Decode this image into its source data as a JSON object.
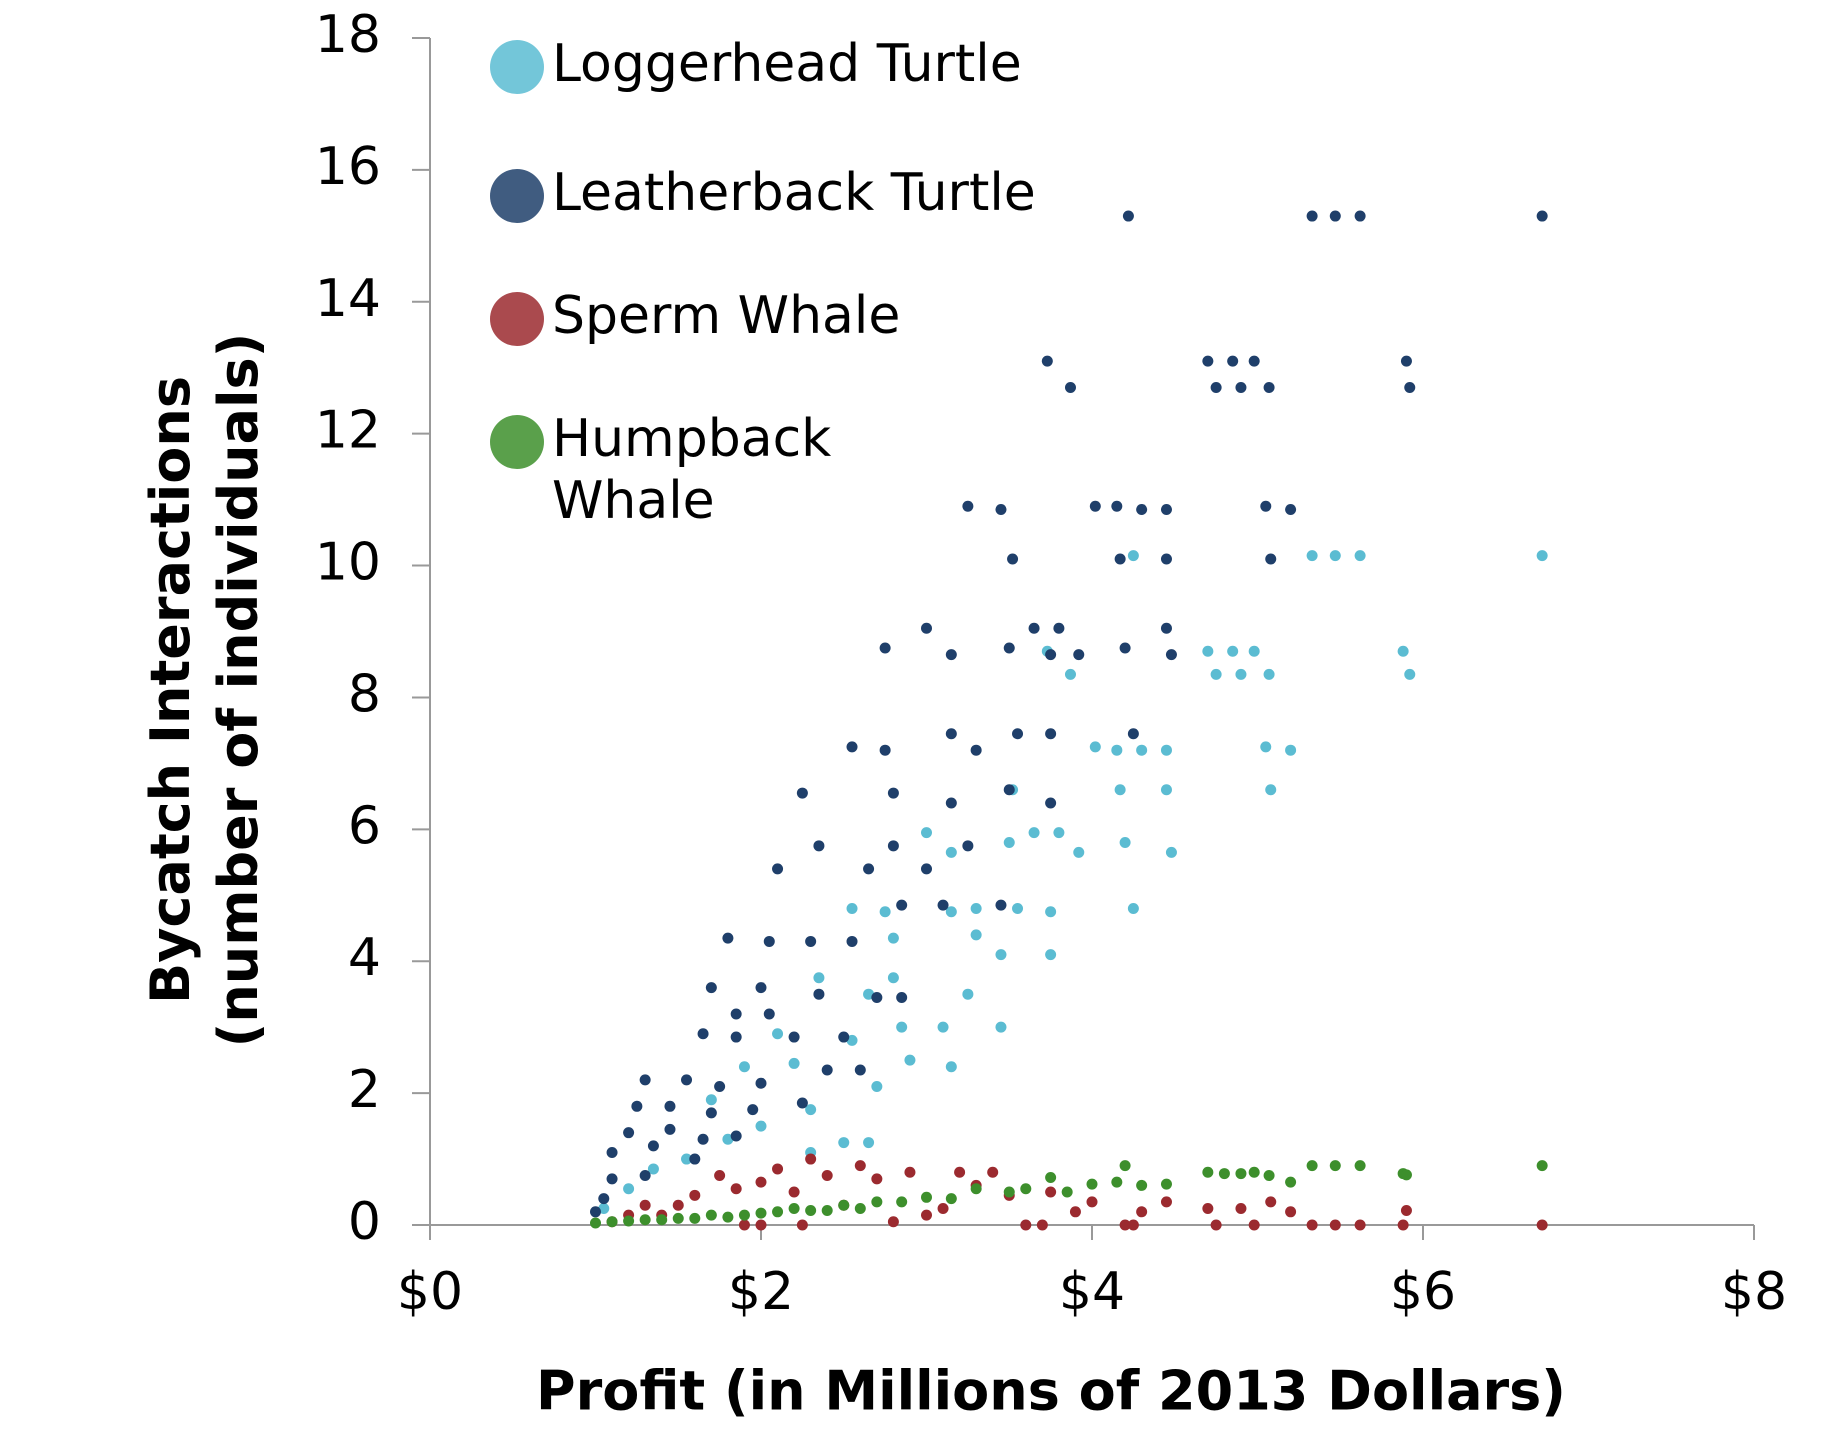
{
  "chart_data": {
    "type": "scatter",
    "xlabel": "Profit (in Millions of 2013 Dollars)",
    "ylabel": "Bycatch Interactions (number of individuals)",
    "xlim": [
      0,
      8
    ],
    "xticks": [
      {
        "value": 0,
        "label": "$0"
      },
      {
        "value": 2,
        "label": "$2"
      },
      {
        "value": 4,
        "label": "$4"
      },
      {
        "value": 6,
        "label": "$6"
      },
      {
        "value": 8,
        "label": "$8"
      }
    ],
    "ylim": [
      0,
      18
    ],
    "yticks": [
      0,
      2,
      4,
      6,
      8,
      10,
      12,
      14,
      16,
      18
    ],
    "legend": "upper left",
    "series": [
      {
        "name": "Loggerhead Turtle",
        "color": "#5bbcd2",
        "x": [
          4.25,
          5.33,
          5.47,
          5.62,
          6.72,
          4.7,
          4.85,
          4.98,
          4.75,
          4.9,
          5.07,
          5.88,
          5.92,
          3.73,
          3.87,
          4.02,
          4.15,
          4.3,
          4.45,
          5.05,
          5.2,
          3.52,
          4.17,
          4.45,
          5.08,
          3.0,
          3.15,
          3.5,
          3.65,
          3.8,
          3.92,
          4.2,
          4.48,
          2.55,
          2.75,
          3.15,
          3.3,
          3.55,
          3.75,
          4.25,
          2.8,
          3.3,
          3.45,
          3.75,
          2.35,
          2.65,
          2.8,
          3.25,
          2.85,
          3.1,
          3.45,
          2.1,
          2.55,
          2.9,
          3.15,
          2.7,
          2.2,
          1.9,
          2.3,
          1.7,
          2.5,
          2.65,
          2.0,
          2.3,
          1.55,
          1.35,
          1.8,
          1.2,
          1.05
        ],
        "values": [
          10.15,
          10.15,
          10.15,
          10.15,
          10.15,
          8.7,
          8.7,
          8.7,
          8.35,
          8.35,
          8.35,
          8.7,
          8.35,
          8.7,
          8.35,
          7.25,
          7.2,
          7.2,
          7.2,
          7.25,
          7.2,
          6.6,
          6.6,
          6.6,
          6.6,
          5.95,
          5.65,
          5.8,
          5.95,
          5.95,
          5.65,
          5.8,
          5.65,
          4.8,
          4.75,
          4.75,
          4.8,
          4.8,
          4.75,
          4.8,
          4.35,
          4.4,
          4.1,
          4.1,
          3.75,
          3.5,
          3.75,
          3.5,
          3.0,
          3.0,
          3.0,
          2.9,
          2.8,
          2.5,
          2.4,
          2.1,
          2.45,
          2.4,
          1.75,
          1.9,
          1.25,
          1.25,
          1.5,
          1.1,
          1.0,
          0.85,
          1.3,
          0.55,
          0.25
        ]
      },
      {
        "name": "Leatherback Turtle",
        "color": "#1f3f6a",
        "x": [
          4.22,
          5.33,
          5.47,
          5.62,
          6.72,
          3.73,
          3.87,
          4.7,
          4.85,
          4.98,
          4.75,
          4.9,
          5.07,
          5.9,
          5.92,
          3.25,
          3.45,
          4.02,
          4.15,
          4.3,
          4.45,
          5.05,
          5.2,
          3.52,
          4.17,
          4.45,
          5.08,
          2.75,
          3.0,
          3.15,
          3.5,
          3.65,
          3.8,
          3.75,
          3.92,
          4.2,
          4.45,
          4.48,
          2.55,
          2.75,
          3.15,
          3.3,
          3.55,
          3.75,
          4.25,
          2.25,
          2.8,
          3.15,
          3.5,
          3.75,
          2.35,
          2.65,
          2.8,
          2.1,
          3.0,
          3.25,
          2.85,
          3.1,
          3.45,
          1.8,
          2.05,
          2.3,
          2.55,
          1.7,
          2.0,
          2.35,
          2.7,
          2.85,
          1.85,
          2.05,
          1.65,
          1.85,
          2.2,
          2.5,
          1.3,
          1.55,
          1.75,
          2.0,
          2.4,
          2.6,
          1.25,
          1.45,
          1.7,
          1.95,
          2.25,
          1.2,
          1.45,
          1.65,
          1.85,
          1.1,
          1.35,
          1.6,
          1.1,
          1.3,
          1.0,
          1.05
        ],
        "values": [
          15.3,
          15.3,
          15.3,
          15.3,
          15.3,
          13.1,
          12.7,
          13.1,
          13.1,
          13.1,
          12.7,
          12.7,
          12.7,
          13.1,
          12.7,
          10.9,
          10.85,
          10.9,
          10.9,
          10.85,
          10.85,
          10.9,
          10.85,
          10.1,
          10.1,
          10.1,
          10.1,
          8.75,
          9.05,
          8.65,
          8.75,
          9.05,
          9.05,
          8.65,
          8.65,
          8.75,
          9.05,
          8.65,
          7.25,
          7.2,
          7.45,
          7.2,
          7.45,
          7.45,
          7.45,
          6.55,
          6.55,
          6.4,
          6.6,
          6.4,
          5.75,
          5.4,
          5.75,
          5.4,
          5.4,
          5.75,
          4.85,
          4.85,
          4.85,
          4.35,
          4.3,
          4.3,
          4.3,
          3.6,
          3.6,
          3.5,
          3.45,
          3.45,
          3.2,
          3.2,
          2.9,
          2.85,
          2.85,
          2.85,
          2.2,
          2.2,
          2.1,
          2.15,
          2.35,
          2.35,
          1.8,
          1.8,
          1.7,
          1.75,
          1.85,
          1.4,
          1.45,
          1.3,
          1.35,
          1.1,
          1.2,
          1.0,
          0.7,
          0.75,
          0.2,
          0.4
        ]
      },
      {
        "name": "Sperm Whale",
        "color": "#9b2a2f",
        "x": [
          6.72,
          5.9,
          5.88,
          5.62,
          5.47,
          5.33,
          5.2,
          5.08,
          4.98,
          4.9,
          4.75,
          4.7,
          4.45,
          4.3,
          4.2,
          4.25,
          4.0,
          3.9,
          3.75,
          3.6,
          3.5,
          3.3,
          3.2,
          3.1,
          3.0,
          2.9,
          2.8,
          2.7,
          2.6,
          2.5,
          2.4,
          2.3,
          2.2,
          2.1,
          2.0,
          1.9,
          1.85,
          1.75,
          1.6,
          1.5,
          1.4,
          1.3,
          1.2,
          1.1,
          3.4,
          3.7,
          2.25,
          2.0
        ],
        "values": [
          0.0,
          0.22,
          0.0,
          0.0,
          0.0,
          0.0,
          0.2,
          0.35,
          0.0,
          0.25,
          0.0,
          0.25,
          0.35,
          0.2,
          0.0,
          0.0,
          0.35,
          0.2,
          0.5,
          0.0,
          0.45,
          0.6,
          0.8,
          0.25,
          0.15,
          0.8,
          0.05,
          0.7,
          0.9,
          0.3,
          0.75,
          1.0,
          0.5,
          0.85,
          0.65,
          0.0,
          0.55,
          0.75,
          0.45,
          0.3,
          0.15,
          0.3,
          0.15,
          0.05,
          0.8,
          0.0,
          0.0,
          0.0
        ]
      },
      {
        "name": "Humpback Whale",
        "color": "#3d8f2c",
        "x": [
          6.72,
          5.88,
          5.9,
          5.62,
          5.47,
          5.33,
          5.2,
          5.07,
          4.98,
          4.9,
          4.8,
          4.7,
          4.45,
          4.3,
          4.2,
          4.15,
          4.0,
          3.85,
          3.75,
          3.6,
          3.5,
          3.3,
          3.15,
          3.0,
          2.85,
          2.7,
          2.6,
          2.5,
          2.4,
          2.3,
          2.2,
          2.1,
          2.0,
          1.9,
          1.8,
          1.7,
          1.6,
          1.5,
          1.4,
          1.3,
          1.2,
          1.1,
          1.0
        ],
        "values": [
          0.9,
          0.78,
          0.76,
          0.9,
          0.9,
          0.9,
          0.65,
          0.75,
          0.8,
          0.78,
          0.78,
          0.8,
          0.62,
          0.6,
          0.9,
          0.65,
          0.62,
          0.5,
          0.72,
          0.55,
          0.5,
          0.55,
          0.4,
          0.42,
          0.35,
          0.35,
          0.25,
          0.3,
          0.22,
          0.22,
          0.25,
          0.2,
          0.18,
          0.15,
          0.12,
          0.15,
          0.1,
          0.1,
          0.08,
          0.08,
          0.06,
          0.05,
          0.03
        ]
      }
    ]
  }
}
